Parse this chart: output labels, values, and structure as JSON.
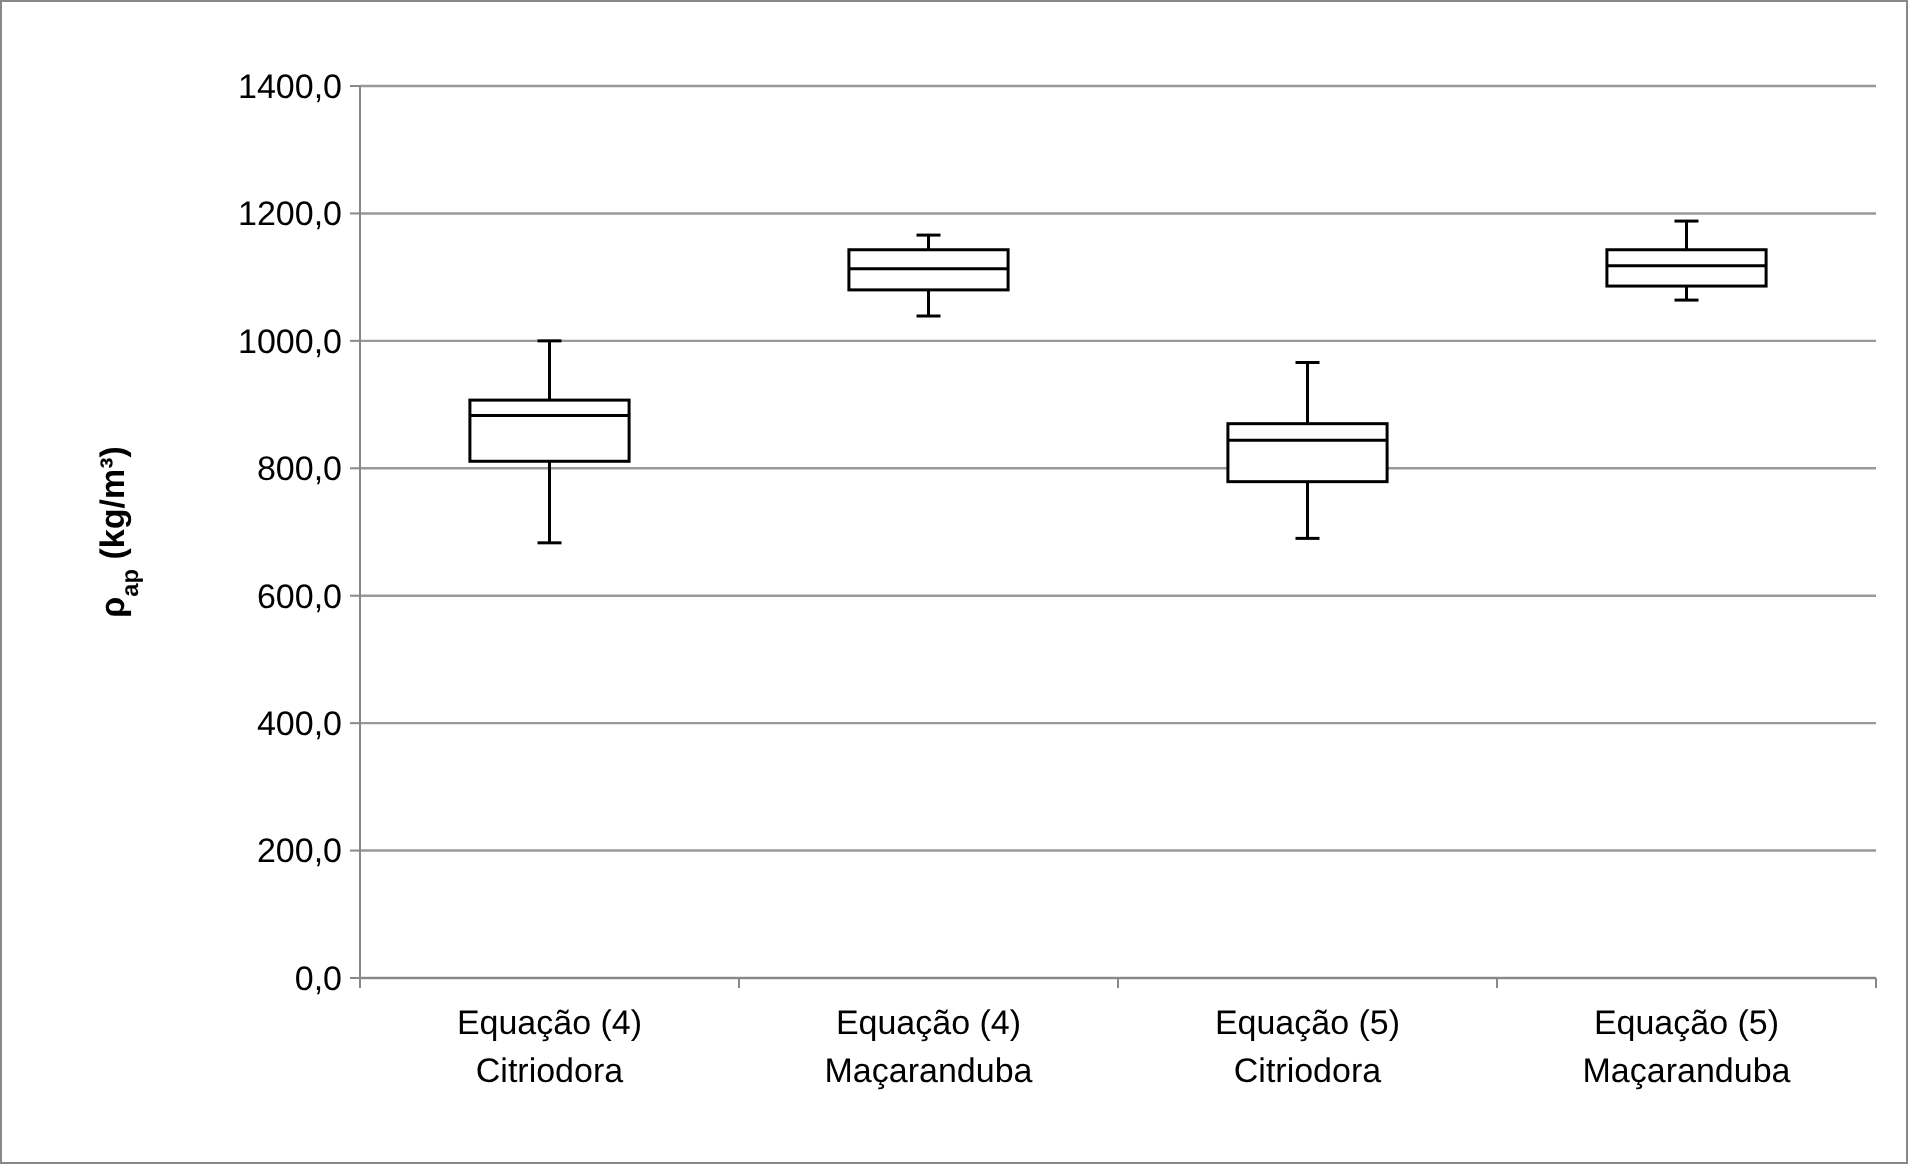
{
  "chart_data": {
    "type": "box",
    "ylabel": "ρ$_{ap}$ (kg/m³)",
    "categories": [
      "Equação (4)\nCitriodora",
      "Equação (4)\nMaçaranduba",
      "Equação (5)\nCitriodora",
      "Equação (5)\nMaçaranduba"
    ],
    "series": [
      {
        "color": "#000000",
        "boxes": [
          {
            "low": 683,
            "q1": 811,
            "median": 883,
            "q3": 907,
            "high": 1000
          },
          {
            "low": 1039,
            "q1": 1080,
            "median": 1113,
            "q3": 1143,
            "high": 1166
          },
          {
            "low": 690,
            "q1": 779,
            "median": 844,
            "q3": 870,
            "high": 966
          },
          {
            "low": 1064,
            "q1": 1086,
            "median": 1118,
            "q3": 1143,
            "high": 1188
          }
        ]
      }
    ],
    "ylim": [
      0,
      1400
    ],
    "yticks": [
      {
        "value": 0,
        "label": "0,0"
      },
      {
        "value": 200,
        "label": "200,0"
      },
      {
        "value": 400,
        "label": "400,0"
      },
      {
        "value": 600,
        "label": "600,0"
      },
      {
        "value": 800,
        "label": "800,0"
      },
      {
        "value": 1000,
        "label": "1000,0"
      },
      {
        "value": 1200,
        "label": "1200,0"
      },
      {
        "value": 1400,
        "label": "1400,0"
      }
    ],
    "grid": "y"
  }
}
